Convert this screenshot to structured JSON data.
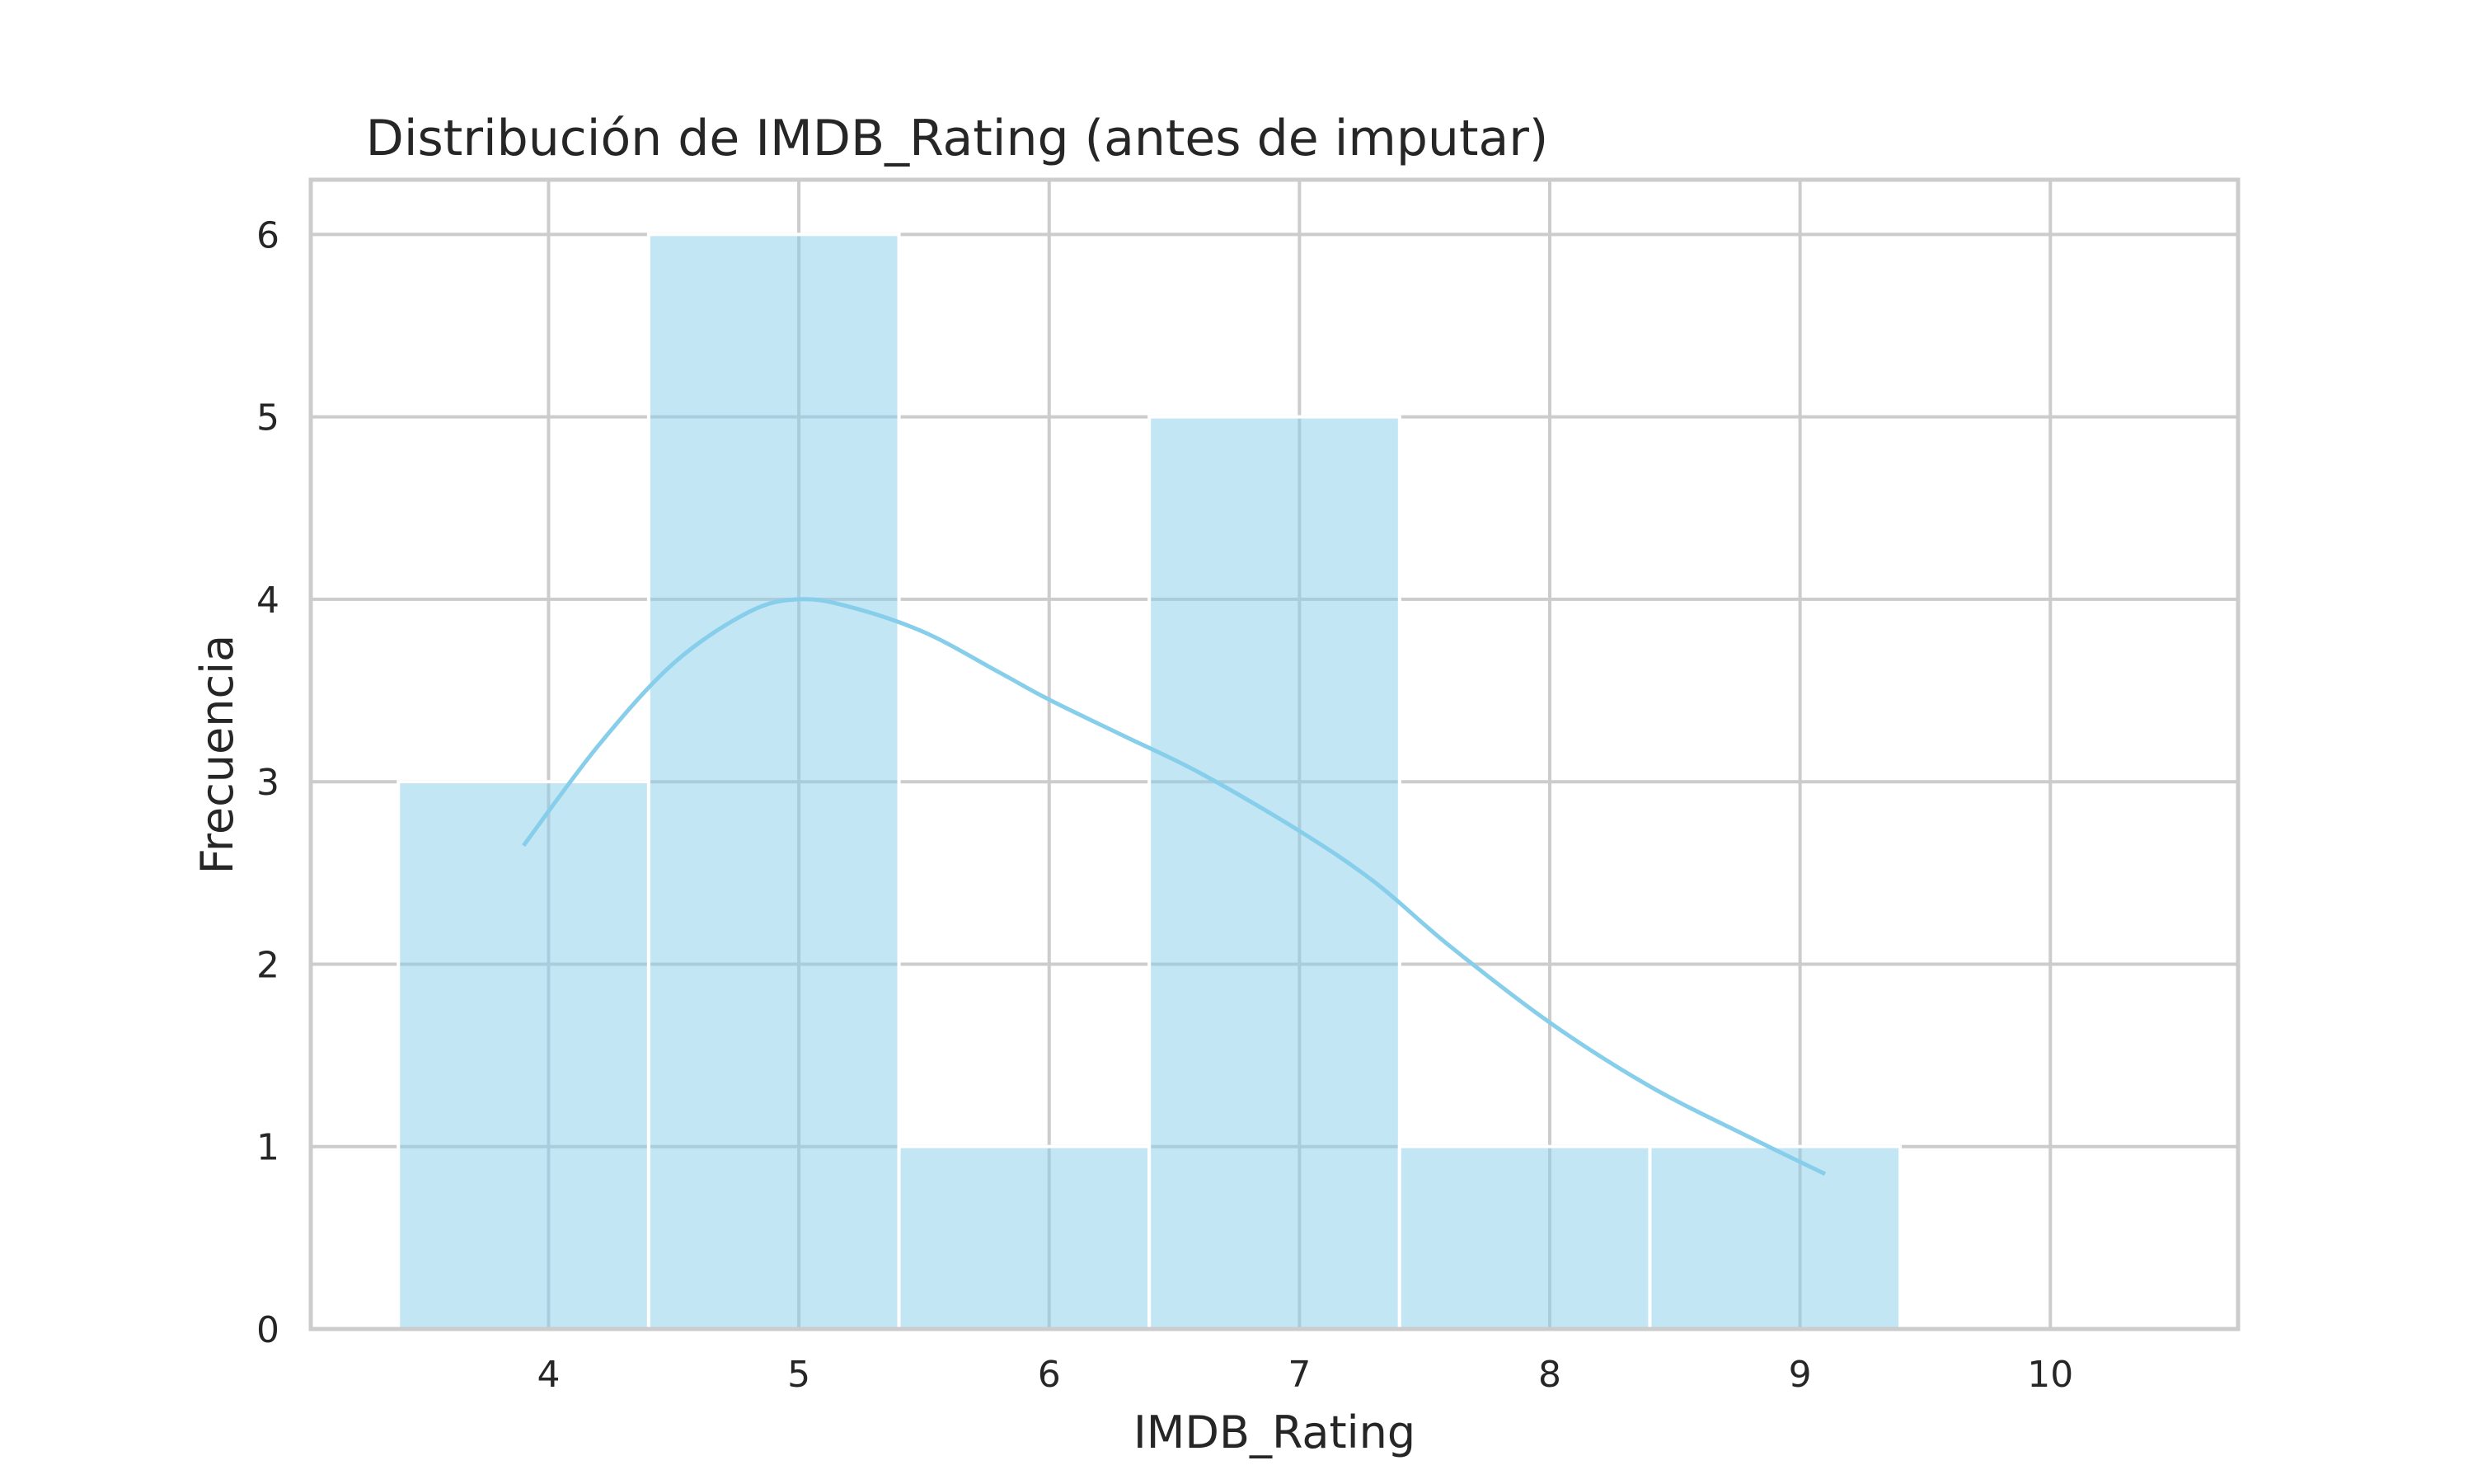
{
  "chart_data": {
    "type": "bar",
    "title": "Distribución de IMDB_Rating (antes de imputar)",
    "xlabel": "IMDB_Rating",
    "ylabel": "Frecuencia",
    "xlim": [
      3.05,
      10.75
    ],
    "ylim": [
      0,
      6.3
    ],
    "grid": true,
    "bin_width": 1.0,
    "bins": [
      {
        "x0": 3.4,
        "x1": 4.4,
        "count": 3
      },
      {
        "x0": 4.4,
        "x1": 5.4,
        "count": 6
      },
      {
        "x0": 5.4,
        "x1": 6.4,
        "count": 1
      },
      {
        "x0": 6.4,
        "x1": 7.4,
        "count": 5
      },
      {
        "x0": 7.4,
        "x1": 8.4,
        "count": 1
      },
      {
        "x0": 8.4,
        "x1": 9.4,
        "count": 1
      }
    ],
    "kde": {
      "x": [
        3.9,
        4.2,
        4.5,
        4.8,
        5.0,
        5.2,
        5.5,
        5.8,
        6.0,
        6.3,
        6.6,
        7.0,
        7.3,
        7.6,
        8.0,
        8.4,
        8.8,
        9.1
      ],
      "y": [
        2.65,
        3.2,
        3.65,
        3.93,
        4.0,
        3.96,
        3.82,
        3.6,
        3.45,
        3.25,
        3.05,
        2.73,
        2.45,
        2.1,
        1.68,
        1.33,
        1.05,
        0.85
      ]
    },
    "x_ticks": [
      4,
      5,
      6,
      7,
      8,
      9,
      10
    ],
    "y_ticks": [
      0,
      1,
      2,
      3,
      4,
      5,
      6
    ],
    "colors": {
      "bar": "#87ceeb",
      "kde": "#87ceeb",
      "grid": "#cccccc"
    }
  }
}
